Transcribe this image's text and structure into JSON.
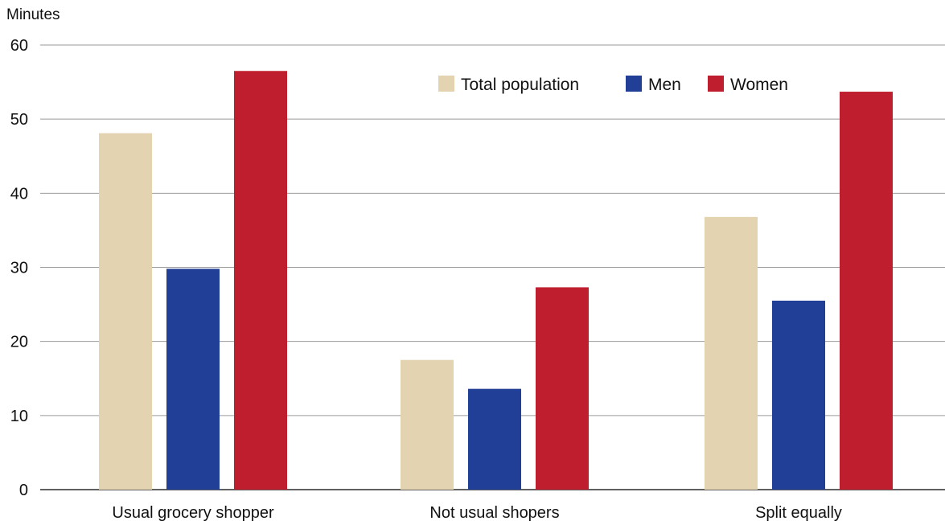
{
  "chart_data": {
    "type": "bar",
    "title": "",
    "xlabel": "",
    "ylabel": "Minutes",
    "ylim": [
      0,
      60
    ],
    "yticks": [
      0,
      10,
      20,
      30,
      40,
      50,
      60
    ],
    "grid": true,
    "legend_position": "top-right",
    "categories": [
      "Usual grocery shopper",
      "Not usual shopers",
      "Split equally"
    ],
    "series": [
      {
        "name": "Total population",
        "color": "#e3d3b0",
        "values": [
          48.1,
          17.5,
          36.8
        ]
      },
      {
        "name": "Men",
        "color": "#223f97",
        "values": [
          29.8,
          13.6,
          25.5
        ]
      },
      {
        "name": "Women",
        "color": "#be1e2d",
        "values": [
          56.5,
          27.3,
          53.7
        ]
      }
    ]
  }
}
